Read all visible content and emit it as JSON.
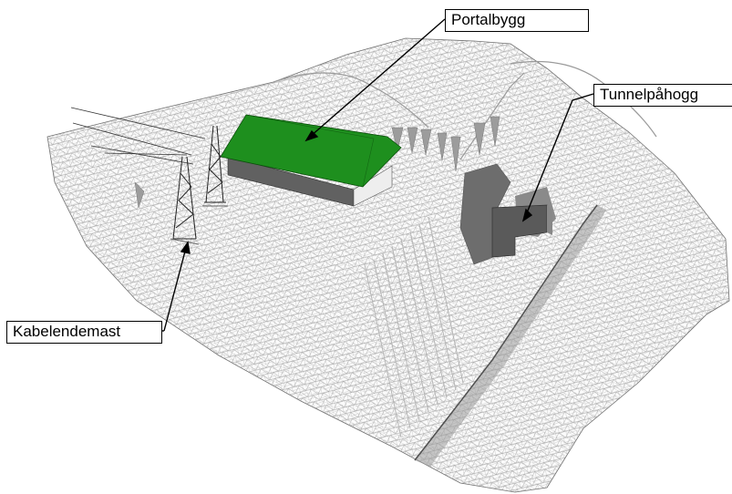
{
  "labels": {
    "portal_building": "Portalbygg",
    "tunnel_portal": "Tunnelpåhogg",
    "cable_end_mast": "Kabelendemast"
  },
  "colors": {
    "roof": "#1e8f1e",
    "mesh": "#8c8c8c",
    "wall_light": "#f2f2f2",
    "wall_dark": "#555555",
    "tunnel": "#5a5a5a"
  }
}
